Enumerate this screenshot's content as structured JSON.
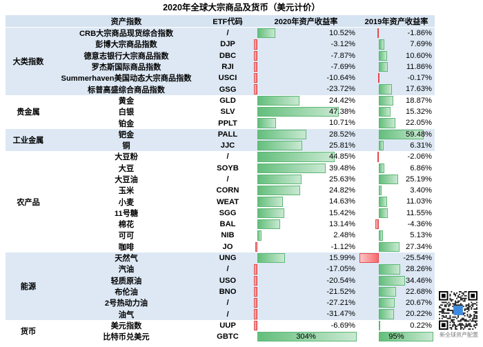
{
  "title": "2020年全球大宗商品及货币（美元计价）",
  "headers": {
    "category": "",
    "name": "资产指数",
    "code": "ETF代码",
    "r2020": "2020年资产收益率",
    "r2019": "2019年资产收益率"
  },
  "colors": {
    "positive": "#63be7b",
    "negative": "#f8696b",
    "shade": "#dde8f4",
    "header": "#d6e3f1"
  },
  "groups": [
    {
      "category": "大类指数",
      "shaded": true,
      "rows": [
        {
          "name": "CRB大宗商品现货综合指数",
          "code": "/",
          "r2020": 10.52,
          "r2020_label": "10.52%",
          "r2019": -1.86,
          "r2019_label": "-1.86%"
        },
        {
          "name": "彭博大宗商品指数",
          "code": "DJP",
          "r2020": -3.12,
          "r2020_label": "-3.12%",
          "r2019": 7.69,
          "r2019_label": "7.69%"
        },
        {
          "name": "德意志银行大宗商品指数",
          "code": "DBC",
          "r2020": -7.87,
          "r2020_label": "-7.87%",
          "r2019": 10.6,
          "r2019_label": "10.60%"
        },
        {
          "name": "罗杰斯国际商品指数",
          "code": "RJI",
          "r2020": -7.69,
          "r2020_label": "-7.69%",
          "r2019": 11.86,
          "r2019_label": "11.86%"
        },
        {
          "name": "Summerhaven美国动态大宗商品指数",
          "code": "USCI",
          "r2020": -10.64,
          "r2020_label": "-10.64%",
          "r2019": -0.17,
          "r2019_label": "-0.17%"
        },
        {
          "name": "标普高盛综合商品指数",
          "code": "GSG",
          "r2020": -23.72,
          "r2020_label": "-23.72%",
          "r2019": 17.63,
          "r2019_label": "17.63%"
        }
      ]
    },
    {
      "category": "贵金属",
      "shaded": false,
      "rows": [
        {
          "name": "黄金",
          "code": "GLD",
          "r2020": 24.42,
          "r2020_label": "24.42%",
          "r2019": 18.87,
          "r2019_label": "18.87%"
        },
        {
          "name": "白银",
          "code": "SLV",
          "r2020": 47.38,
          "r2020_label": "47.38%",
          "r2019": 15.32,
          "r2019_label": "15.32%"
        },
        {
          "name": "铂金",
          "code": "PPLT",
          "r2020": 10.71,
          "r2020_label": "10.71%",
          "r2019": 22.05,
          "r2019_label": "22.05%"
        }
      ]
    },
    {
      "category": "工业金属",
      "shaded": true,
      "rows": [
        {
          "name": "钯金",
          "code": "PALL",
          "r2020": 28.52,
          "r2020_label": "28.52%",
          "r2019": 59.48,
          "r2019_label": "59.48%"
        },
        {
          "name": "铜",
          "code": "JJC",
          "r2020": 25.81,
          "r2020_label": "25.81%",
          "r2019": 6.31,
          "r2019_label": "6.31%"
        }
      ]
    },
    {
      "category": "农产品",
      "shaded": false,
      "rows": [
        {
          "name": "大豆粉",
          "code": "/",
          "r2020": 44.85,
          "r2020_label": "44.85%",
          "r2019": -2.06,
          "r2019_label": "-2.06%"
        },
        {
          "name": "大豆",
          "code": "SOYB",
          "r2020": 39.48,
          "r2020_label": "39.48%",
          "r2019": 6.86,
          "r2019_label": "6.86%"
        },
        {
          "name": "大豆油",
          "code": "/",
          "r2020": 25.63,
          "r2020_label": "25.63%",
          "r2019": 25.19,
          "r2019_label": "25.19%"
        },
        {
          "name": "玉米",
          "code": "CORN",
          "r2020": 24.82,
          "r2020_label": "24.82%",
          "r2019": 3.4,
          "r2019_label": "3.40%"
        },
        {
          "name": "小麦",
          "code": "WEAT",
          "r2020": 14.63,
          "r2020_label": "14.63%",
          "r2019": 11.03,
          "r2019_label": "11.03%"
        },
        {
          "name": "11号糖",
          "code": "SGG",
          "r2020": 15.42,
          "r2020_label": "15.42%",
          "r2019": 11.55,
          "r2019_label": "11.55%"
        },
        {
          "name": "棉花",
          "code": "BAL",
          "r2020": 13.14,
          "r2020_label": "13.14%",
          "r2019": -4.36,
          "r2019_label": "-4.36%"
        },
        {
          "name": "可可",
          "code": "NIB",
          "r2020": 2.48,
          "r2020_label": "2.48%",
          "r2019": 5.13,
          "r2019_label": "5.13%"
        },
        {
          "name": "咖啡",
          "code": "JO",
          "r2020": -1.12,
          "r2020_label": "-1.12%",
          "r2019": 27.34,
          "r2019_label": "27.34%"
        }
      ]
    },
    {
      "category": "能源",
      "shaded": true,
      "rows": [
        {
          "name": "天然气",
          "code": "UNG",
          "r2020": 15.99,
          "r2020_label": "15.99%",
          "r2019": -25.54,
          "r2019_label": "-25.54%"
        },
        {
          "name": "汽油",
          "code": "/",
          "r2020": -17.05,
          "r2020_label": "-17.05%",
          "r2019": 28.26,
          "r2019_label": "28.26%"
        },
        {
          "name": "轻质原油",
          "code": "USO",
          "r2020": -20.54,
          "r2020_label": "-20.54%",
          "r2019": 34.46,
          "r2019_label": "34.46%"
        },
        {
          "name": "布伦油",
          "code": "BNO",
          "r2020": -21.52,
          "r2020_label": "-21.52%",
          "r2019": 22.68,
          "r2019_label": "22.68%"
        },
        {
          "name": "2号热动力油",
          "code": "/",
          "r2020": -27.21,
          "r2020_label": "-27.21%",
          "r2019": 20.67,
          "r2019_label": "20.67%"
        },
        {
          "name": "油气",
          "code": "/",
          "r2020": -31.47,
          "r2020_label": "-31.47%",
          "r2019": 20.22,
          "r2019_label": "20.22%"
        }
      ]
    },
    {
      "category": "货币",
      "shaded": false,
      "rows": [
        {
          "name": "美元指数",
          "code": "UUP",
          "r2020": -6.69,
          "r2020_label": "-6.69%",
          "r2019": 0.22,
          "r2019_label": "0.22%"
        },
        {
          "name": "比特币兑美元",
          "code": "GBTC",
          "r2020": 304,
          "r2020_label": "304%",
          "r2019": 95,
          "r2019_label": "95%"
        }
      ]
    }
  ],
  "watermark": {
    "caption": "新全球资产配置",
    "qr_icon": "qr-code-icon"
  }
}
